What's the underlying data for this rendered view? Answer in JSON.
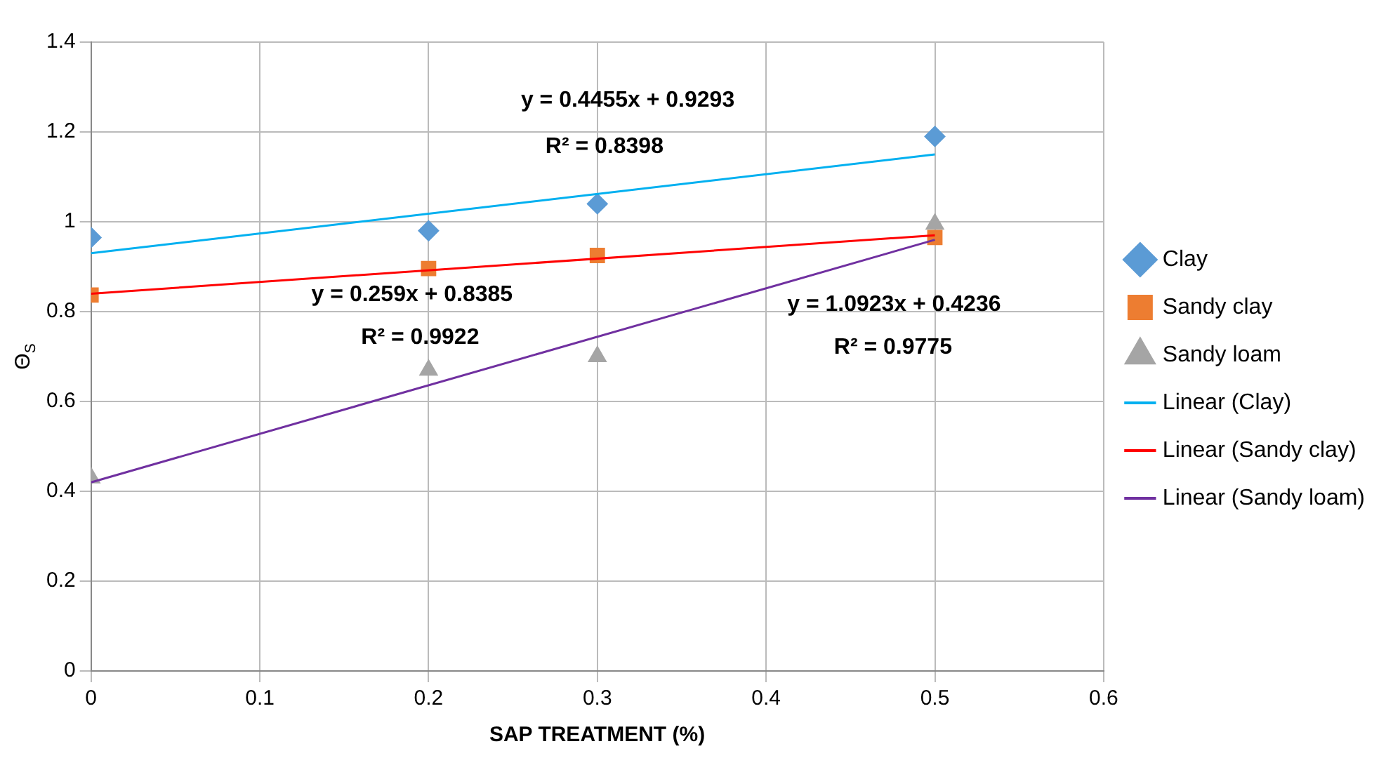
{
  "chart_data": {
    "type": "scatter",
    "xlabel": "SAP TREATMENT (%)",
    "ylabel": "Θ$_{S}$",
    "xlim": [
      0,
      0.6
    ],
    "xticks": [
      0,
      0.1,
      0.2,
      0.3,
      0.4,
      0.5,
      0.6
    ],
    "ylim": [
      0,
      1.4
    ],
    "yticks": [
      0,
      0.2,
      0.4,
      0.6,
      0.8,
      1,
      1.2,
      1.4
    ],
    "grid": true,
    "legend": "right",
    "series": [
      {
        "name": "Clay",
        "type": "scatter",
        "marker": "diamond",
        "color": "#5b9bd5",
        "x": [
          0,
          0.2,
          0.3,
          0.5
        ],
        "values": [
          0.965,
          0.98,
          1.04,
          1.19
        ]
      },
      {
        "name": "Sandy clay",
        "type": "scatter",
        "marker": "square",
        "color": "#ed7d31",
        "x": [
          0,
          0.2,
          0.3,
          0.5
        ],
        "values": [
          0.837,
          0.896,
          0.925,
          0.965
        ]
      },
      {
        "name": "Sandy loam",
        "type": "scatter",
        "marker": "triangle",
        "color": "#a5a5a5",
        "x": [
          0,
          0.2,
          0.3,
          0.5
        ],
        "values": [
          0.43,
          0.67,
          0.7,
          0.995
        ]
      },
      {
        "name": "Linear (Clay)",
        "type": "line",
        "marker": "none",
        "color": "#00b0f0",
        "x": [
          0,
          0.5
        ],
        "values": [
          0.93,
          1.15
        ]
      },
      {
        "name": "Linear (Sandy clay)",
        "type": "line",
        "marker": "none",
        "color": "#ff0000",
        "x": [
          0,
          0.5
        ],
        "values": [
          0.84,
          0.97
        ]
      },
      {
        "name": "Linear (Sandy loam)",
        "type": "line",
        "marker": "none",
        "color": "#7030a0",
        "x": [
          0,
          0.5
        ],
        "values": [
          0.42,
          0.96
        ]
      }
    ],
    "annotations": [
      "y = 0.4455x + 0.9293",
      "R² = 0.8398",
      "y = 0.259x + 0.8385",
      "R² = 0.9922",
      "y = 1.0923x + 0.4236",
      "R² = 0.9775"
    ]
  }
}
